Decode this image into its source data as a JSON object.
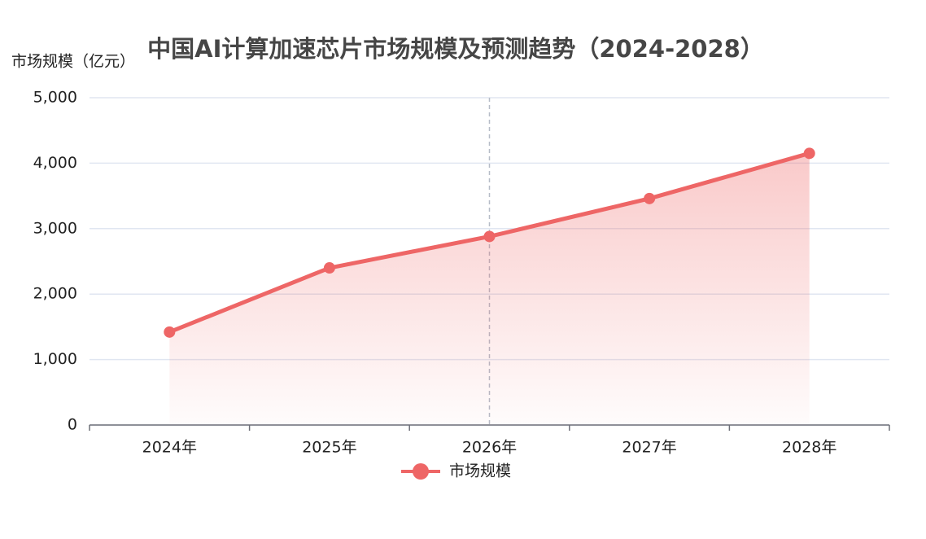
{
  "chart_data": {
    "type": "line",
    "title": "中国AI计算加速芯片市场规模及预测趋势（2024-2028）",
    "y_label": "市场规模（亿元）",
    "categories": [
      "2024年",
      "2025年",
      "2026年",
      "2027年",
      "2028年"
    ],
    "series": [
      {
        "name": "市场规模",
        "color": "#ee6666",
        "values": [
          1420,
          2400,
          2880,
          3460,
          4150
        ]
      }
    ],
    "ylim": [
      0,
      5000
    ],
    "yticks": [
      0,
      {
        "value": 1000,
        "label": "1,000"
      },
      {
        "value": 2000,
        "label": "2,000"
      },
      {
        "value": 3000,
        "label": "3,000"
      },
      {
        "value": 4000,
        "label": "4,000"
      },
      {
        "value": 5000,
        "label": "5,000"
      }
    ],
    "grid": true,
    "legend": "bottom",
    "area": true
  }
}
